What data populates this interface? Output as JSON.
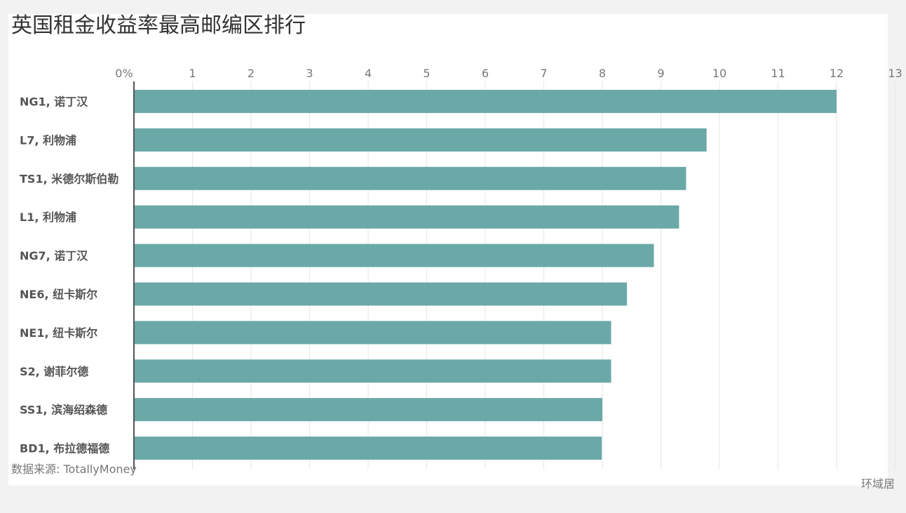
{
  "chart_data": {
    "type": "bar",
    "orientation": "horizontal",
    "title": "英国租金收益率最高邮编区排行",
    "source": "数据来源: TotallyMoney",
    "brand": "环域居",
    "categories": [
      "NG1, 诺丁汉",
      "L7, 利物浦",
      "TS1, 米德尔斯伯勒",
      "L1, 利物浦",
      "NG7, 诺丁汉",
      "NE6, 纽卡斯尔",
      "NE1, 纽卡斯尔",
      "S2, 谢菲尔德",
      "SS1, 滨海绍森德",
      "BD1, 布拉德福德"
    ],
    "values": [
      12.0,
      9.78,
      9.43,
      9.31,
      8.88,
      8.42,
      8.15,
      8.15,
      8.0,
      7.99
    ],
    "xlim": [
      0,
      13
    ],
    "ticks": [
      "0%",
      "1",
      "2",
      "3",
      "4",
      "5",
      "6",
      "7",
      "8",
      "9",
      "10",
      "11",
      "12",
      "13"
    ],
    "axis_position": "top",
    "grid": true,
    "legend": "none",
    "colors": {
      "bar": "#6aa9a7",
      "grid": "#e6e6e6",
      "axis": "#555555",
      "tick_text": "#777777",
      "label_text": "#555555"
    }
  }
}
